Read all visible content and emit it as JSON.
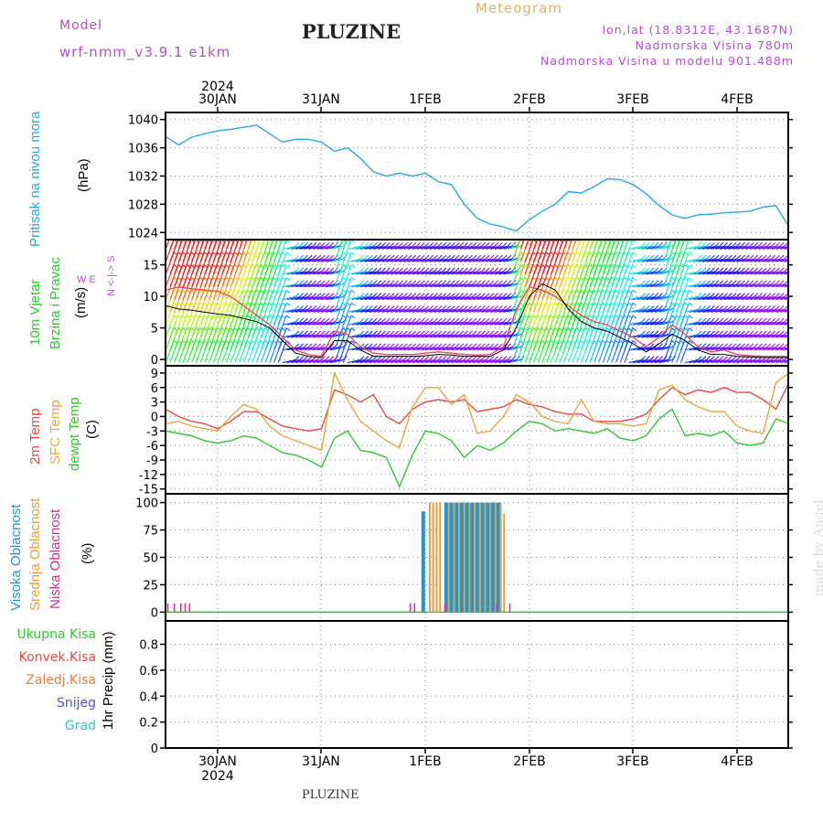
{
  "header": {
    "title": "PLUZINE",
    "meteogram": "Meteogram",
    "model_label": "Model",
    "model_name": "wrf-nmm_v3.9.1  e1km",
    "lonlat": "lon,lat (18.8312E, 43.1687N)",
    "altitude": "Nadmorska Visina 780m",
    "model_altitude": "Nadmorska Visina u modelu 901.488m",
    "footer": "PLUZINE",
    "credit": "made by Angel",
    "year_top": "2024",
    "year_bottom": "2024"
  },
  "colors": {
    "pressure": "#29a8e0",
    "temp2m": "#e84848",
    "sfc": "#e8a838",
    "dewpt": "#2ec82e",
    "high_cloud": "#1e96dc",
    "mid_cloud": "#e0a040",
    "low_cloud": "#d0308c",
    "purple": "#b14fd0"
  },
  "labels": {
    "pressure_name": "Pritisak na nivou mora",
    "pressure_unit": "(hPa)",
    "wind_name1": "10m Vjetar",
    "wind_name2": "Brzina i Pravac",
    "wind_unit": "(m/s)",
    "wind_compass_ns": "N <-|-> S",
    "wind_compass_we": "W    E",
    "temp_2m": "2m Temp",
    "temp_sfc": "SFC Temp",
    "temp_dew": "dewpt Temp",
    "temp_unit": "(C)",
    "cloud_high": "Visoka Oblacnost",
    "cloud_mid": "Srednja Oblacnost",
    "cloud_low": "Niska Oblacnost",
    "cloud_unit": "(%)",
    "precip_unit": "1hr Precip (mm)",
    "precip_total": "Ukupna Kisa",
    "precip_conv": "Konvek.Kisa",
    "precip_frozen": "Zaledj.Kisa",
    "precip_snow": "Snijeg",
    "precip_graupel": "Grad"
  },
  "chart_data": [
    {
      "type": "line",
      "name": "pressure",
      "x_labels": [
        "30JAN",
        "31JAN",
        "1FEB",
        "2FEB",
        "3FEB",
        "4FEB"
      ],
      "ylim": [
        1023,
        1041
      ],
      "yticks": [
        1024,
        1028,
        1032,
        1036,
        1040
      ],
      "x_hours": [
        0,
        3,
        6,
        9,
        12,
        15,
        18,
        21,
        24,
        27,
        30,
        33,
        36,
        39,
        42,
        45,
        48,
        51,
        54,
        57,
        60,
        63,
        66,
        69,
        72,
        75,
        78,
        81,
        84,
        87,
        90,
        93,
        96,
        99,
        102,
        105,
        108,
        111,
        114,
        117,
        120,
        123,
        126,
        129,
        132,
        135,
        138,
        141,
        144
      ],
      "series": [
        {
          "values": [
            1037.6,
            1036.4,
            1037.5,
            1038.0,
            1038.4,
            1038.6,
            1038.9,
            1039.2,
            1038.0,
            1036.8,
            1037.2,
            1037.2,
            1036.8,
            1035.5,
            1036.0,
            1034.5,
            1032.6,
            1032.0,
            1032.4,
            1032.0,
            1032.4,
            1031.2,
            1030.8,
            1028.0,
            1026.0,
            1025.2,
            1024.8,
            1024.2,
            1025.8,
            1027.0,
            1028.0,
            1029.8,
            1029.6,
            1030.5,
            1031.6,
            1031.5,
            1030.8,
            1029.5,
            1027.8,
            1026.5,
            1026.0,
            1026.5,
            1026.6,
            1026.8,
            1026.9,
            1027.0,
            1027.6,
            1027.8,
            1024.8
          ]
        }
      ]
    },
    {
      "type": "line",
      "name": "wind",
      "ylim": [
        -1,
        19
      ],
      "yticks": [
        0,
        5,
        10,
        15
      ],
      "x_hours": [
        0,
        3,
        6,
        9,
        12,
        15,
        18,
        21,
        24,
        27,
        30,
        33,
        36,
        39,
        42,
        45,
        48,
        51,
        54,
        57,
        60,
        63,
        66,
        69,
        72,
        75,
        78,
        81,
        84,
        87,
        90,
        93,
        96,
        99,
        102,
        105,
        108,
        111,
        114,
        117,
        120,
        123,
        126,
        129,
        132,
        135,
        138,
        141,
        144
      ],
      "series": [
        {
          "values": [
            11,
            11.5,
            11.2,
            11.0,
            10.8,
            10.0,
            8.5,
            7.0,
            5.5,
            3.5,
            1.5,
            0.8,
            0.5,
            4.5,
            4.0,
            2.0,
            1.0,
            0.8,
            0.8,
            0.8,
            1.0,
            1.2,
            1.0,
            0.8,
            0.7,
            0.8,
            2.0,
            8.0,
            11.5,
            11.0,
            10.0,
            8.5,
            7.0,
            6.0,
            5.5,
            4.5,
            3.5,
            2.0,
            3.5,
            5.5,
            4.0,
            2.0,
            1.2,
            1.5,
            0.8,
            0.6,
            0.5,
            0.5,
            0.5
          ]
        },
        {
          "values": [
            8.5,
            8.0,
            7.8,
            7.5,
            7.2,
            7.0,
            6.5,
            6.0,
            5.0,
            3.0,
            1.0,
            0.5,
            0.3,
            3.0,
            3.0,
            1.5,
            0.5,
            0.5,
            0.5,
            0.5,
            0.6,
            0.8,
            0.7,
            0.5,
            0.5,
            0.5,
            1.5,
            5.0,
            10.0,
            12.0,
            11.0,
            8.0,
            6.0,
            5.0,
            4.5,
            3.5,
            2.5,
            1.2,
            2.5,
            4.0,
            3.0,
            1.5,
            0.8,
            0.8,
            0.5,
            0.4,
            0.3,
            0.3,
            0.3
          ]
        }
      ]
    },
    {
      "type": "line",
      "name": "temperature",
      "ylim": [
        -16,
        10.5
      ],
      "yticks": [
        9,
        6,
        3,
        0,
        -3,
        -6,
        -9,
        -12,
        -15
      ],
      "x_hours": [
        0,
        3,
        6,
        9,
        12,
        15,
        18,
        21,
        24,
        27,
        30,
        33,
        36,
        39,
        42,
        45,
        48,
        51,
        54,
        57,
        60,
        63,
        66,
        69,
        72,
        75,
        78,
        81,
        84,
        87,
        90,
        93,
        96,
        99,
        102,
        105,
        108,
        111,
        114,
        117,
        120,
        123,
        126,
        129,
        132,
        135,
        138,
        141,
        144
      ],
      "series": [
        {
          "name": "2m Temp",
          "values": [
            1.5,
            0.0,
            -1.0,
            -1.5,
            -2.5,
            -1.0,
            1.0,
            1.0,
            -0.5,
            -2.0,
            -2.5,
            -3.0,
            -2.5,
            5.5,
            4.5,
            3.0,
            4.5,
            0.0,
            -1.5,
            1.5,
            3.0,
            3.5,
            3.0,
            3.5,
            1.0,
            1.5,
            2.0,
            3.5,
            2.5,
            2.0,
            1.0,
            0.5,
            0.5,
            -1.0,
            -1.0,
            -1.0,
            -0.5,
            0.5,
            3.5,
            6.0,
            4.5,
            5.5,
            5.0,
            6.0,
            5.0,
            5.0,
            3.5,
            1.5,
            7.0
          ]
        },
        {
          "name": "SFC Temp",
          "values": [
            -1.5,
            -1.0,
            -2.0,
            -2.5,
            -3.0,
            0.0,
            2.5,
            1.5,
            -2.0,
            -4.0,
            -5.0,
            -6.0,
            -7.0,
            9.0,
            3.5,
            -1.0,
            -3.0,
            -5.0,
            -6.5,
            2.0,
            6.0,
            6.0,
            2.5,
            4.5,
            -3.5,
            -3.0,
            0.0,
            4.5,
            3.0,
            0.0,
            -1.0,
            -1.5,
            3.5,
            -1.0,
            -1.5,
            -1.5,
            -2.0,
            -1.5,
            5.5,
            6.5,
            3.5,
            2.0,
            1.0,
            1.0,
            -2.0,
            -3.0,
            -3.5,
            7.0,
            9.0
          ]
        },
        {
          "name": "dewpt Temp",
          "values": [
            -3.0,
            -3.5,
            -4.0,
            -5.0,
            -5.5,
            -5.0,
            -4.0,
            -4.5,
            -6.0,
            -7.5,
            -8.0,
            -9.0,
            -10.5,
            -4.5,
            -3.0,
            -7.0,
            -7.5,
            -8.5,
            -14.5,
            -8.0,
            -3.0,
            -3.5,
            -5.0,
            -8.5,
            -6.0,
            -7.0,
            -5.5,
            -3.0,
            -1.0,
            -1.5,
            -3.0,
            -2.5,
            -3.0,
            -3.5,
            -2.5,
            -4.5,
            -5.0,
            -4.0,
            -0.5,
            1.5,
            -4.0,
            -3.5,
            -4.0,
            -3.0,
            -5.5,
            -6.0,
            -5.5,
            -0.5,
            -1.5
          ]
        }
      ]
    },
    {
      "type": "bar",
      "name": "clouds",
      "ylim": [
        -8,
        108
      ],
      "yticks": [
        0,
        25,
        50,
        75,
        100
      ],
      "series": [
        {
          "name": "Visoka Oblacnost",
          "x_hours": [
            59.5,
            64.8,
            66.0,
            67.2,
            68.4,
            69.6,
            70.8,
            72.0,
            73.2,
            74.4,
            75.6,
            76.8
          ],
          "values": [
            92,
            100,
            100,
            100,
            100,
            100,
            100,
            100,
            100,
            100,
            100,
            100
          ]
        },
        {
          "name": "Srednja Oblacnost",
          "x_hours": [
            61.0,
            61.8,
            62.6,
            63.4,
            65.4,
            66.6,
            67.8,
            69.0,
            70.2,
            71.4,
            72.6,
            73.8,
            75.0,
            76.2,
            77.4,
            78.2
          ],
          "values": [
            100,
            100,
            100,
            100,
            100,
            100,
            100,
            100,
            100,
            100,
            100,
            100,
            100,
            100,
            100,
            90
          ]
        },
        {
          "name": "Niska Oblacnost",
          "x_hours": [
            0.5,
            2.0,
            3.5,
            4.5,
            5.5,
            56.5,
            57.5,
            64.5,
            76.5,
            79.5
          ],
          "values": [
            8,
            8,
            8,
            8,
            8,
            8,
            8,
            8,
            8,
            8
          ]
        }
      ]
    },
    {
      "type": "bar",
      "name": "precipitation",
      "ylim": [
        0,
        0.98
      ],
      "yticks": [
        0,
        0.2,
        0.4,
        0.6,
        0.8
      ],
      "series": [
        {
          "name": "Ukupna Kisa",
          "values": []
        },
        {
          "name": "Konvek.Kisa",
          "values": []
        },
        {
          "name": "Zaledj.Kisa",
          "values": []
        },
        {
          "name": "Snijeg",
          "values": []
        },
        {
          "name": "Grad",
          "values": []
        }
      ]
    }
  ]
}
